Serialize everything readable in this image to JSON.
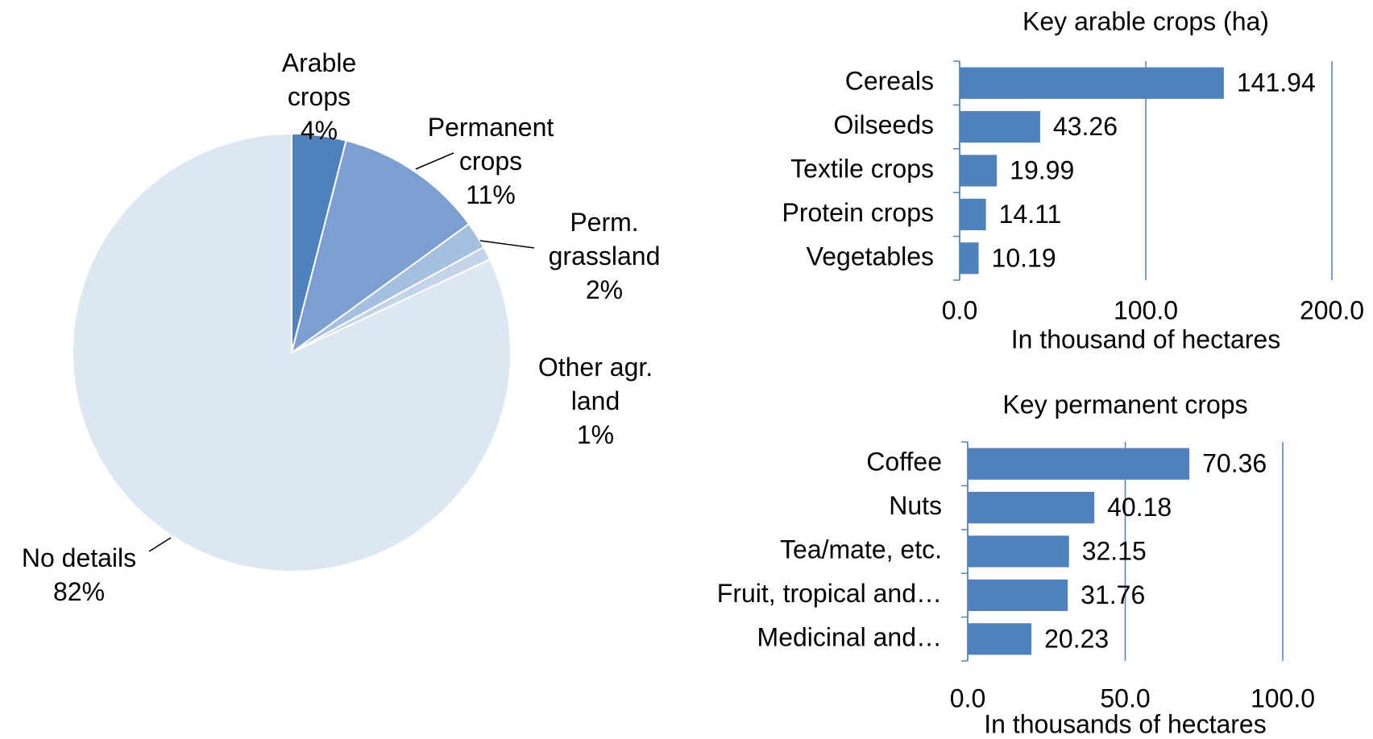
{
  "chart_data": [
    {
      "type": "pie",
      "categories": [
        "Arable crops",
        "Permanent crops",
        "Perm. grassland",
        "Other agr. land",
        "No details"
      ],
      "values": [
        4,
        11,
        2,
        1,
        82
      ],
      "value_labels": [
        "4%",
        "11%",
        "2%",
        "1%",
        "82%"
      ],
      "colors": [
        "#4f81bd",
        "#7b9fd1",
        "#a5bfe0",
        "#c3d4ea",
        "#dde7f3"
      ]
    },
    {
      "type": "barh",
      "title": "Key arable crops (ha)",
      "xlabel": "In thousand of hectares",
      "categories": [
        "Cereals",
        "Oilseeds",
        "Textile crops",
        "Protein crops",
        "Vegetables"
      ],
      "values": [
        141.94,
        43.26,
        19.99,
        14.11,
        10.19
      ],
      "color": "#4f81bd",
      "xlim": [
        0,
        200
      ],
      "xticks": [
        {
          "value": 0,
          "label": "0.0"
        },
        {
          "value": 100,
          "label": "100.0"
        },
        {
          "value": 200,
          "label": "200.0"
        }
      ],
      "grid": true
    },
    {
      "type": "barh",
      "title": "Key permanent crops",
      "xlabel": "In thousands of hectares",
      "categories": [
        "Coffee",
        "Nuts",
        "Tea/mate, etc.",
        "Fruit, tropical and…",
        "Medicinal and…"
      ],
      "values": [
        70.36,
        40.18,
        32.15,
        31.76,
        20.23
      ],
      "color": "#4f81bd",
      "xlim": [
        0,
        100
      ],
      "xticks": [
        {
          "value": 0,
          "label": "0.0"
        },
        {
          "value": 50,
          "label": "50.0"
        },
        {
          "value": 100,
          "label": "100.0"
        }
      ],
      "grid": true
    }
  ]
}
